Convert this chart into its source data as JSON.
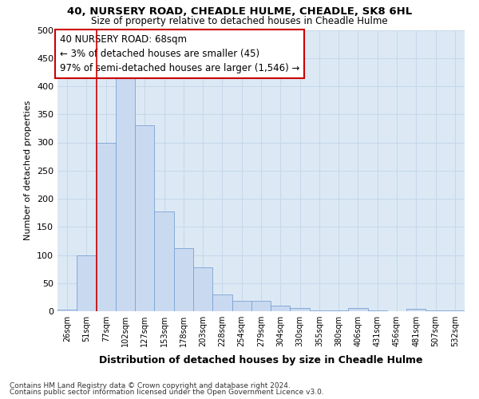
{
  "title1": "40, NURSERY ROAD, CHEADLE HULME, CHEADLE, SK8 6HL",
  "title2": "Size of property relative to detached houses in Cheadle Hulme",
  "xlabel": "Distribution of detached houses by size in Cheadle Hulme",
  "ylabel": "Number of detached properties",
  "bar_labels": [
    "26sqm",
    "51sqm",
    "77sqm",
    "102sqm",
    "127sqm",
    "153sqm",
    "178sqm",
    "203sqm",
    "228sqm",
    "254sqm",
    "279sqm",
    "304sqm",
    "330sqm",
    "355sqm",
    "380sqm",
    "406sqm",
    "431sqm",
    "456sqm",
    "481sqm",
    "507sqm",
    "532sqm"
  ],
  "bar_values": [
    3,
    100,
    300,
    415,
    330,
    178,
    112,
    78,
    30,
    18,
    18,
    10,
    6,
    2,
    2,
    6,
    1,
    0,
    4,
    1,
    1
  ],
  "bar_color": "#c9d9f0",
  "bar_edge_color": "#7ba3d4",
  "vline_x": 1.5,
  "vline_color": "#cc0000",
  "annotation_title": "40 NURSERY ROAD: 68sqm",
  "annotation_line2": "← 3% of detached houses are smaller (45)",
  "annotation_line3": "97% of semi-detached houses are larger (1,546) →",
  "annotation_box_color": "#ffffff",
  "annotation_box_edge": "#cc0000",
  "grid_color": "#c8d8ea",
  "plot_bg_color": "#dce9f5",
  "ylim": [
    0,
    500
  ],
  "yticks": [
    0,
    50,
    100,
    150,
    200,
    250,
    300,
    350,
    400,
    450,
    500
  ],
  "footer1": "Contains HM Land Registry data © Crown copyright and database right 2024.",
  "footer2": "Contains public sector information licensed under the Open Government Licence v3.0."
}
